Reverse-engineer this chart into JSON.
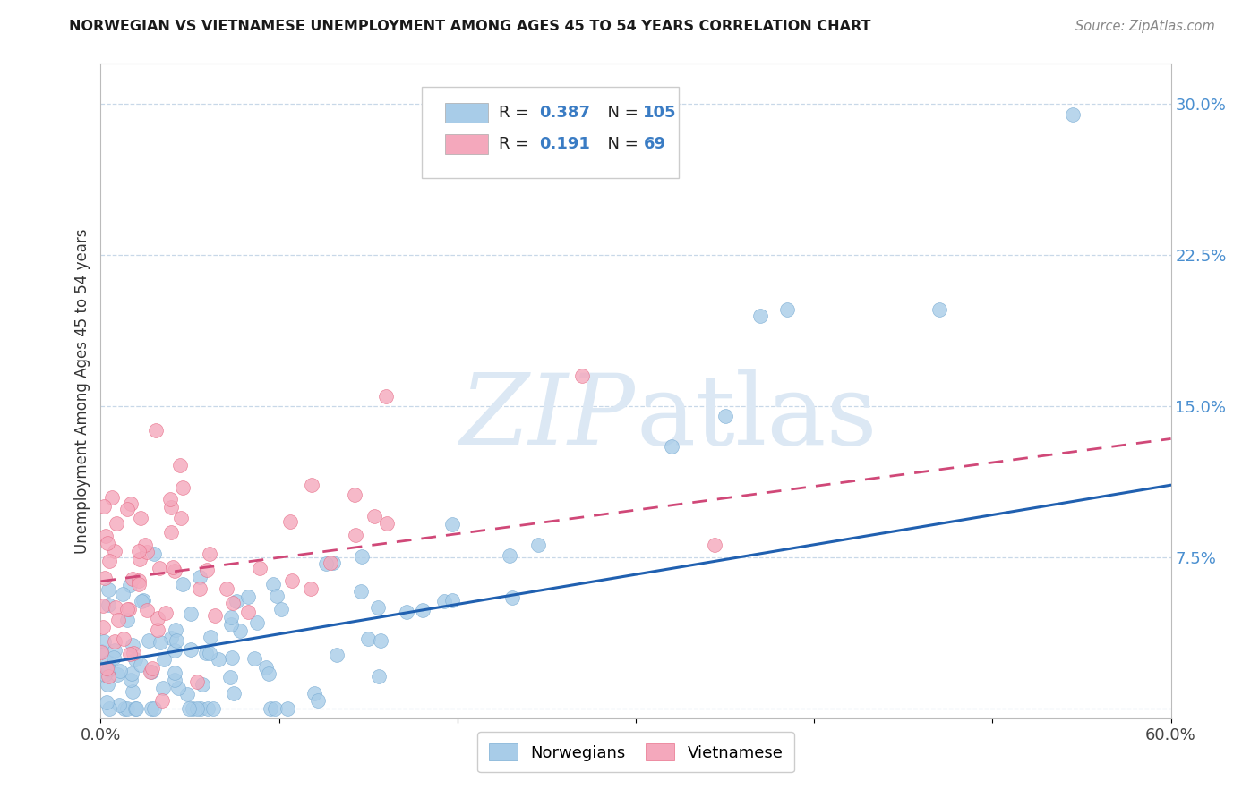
{
  "title": "NORWEGIAN VS VIETNAMESE UNEMPLOYMENT AMONG AGES 45 TO 54 YEARS CORRELATION CHART",
  "source": "Source: ZipAtlas.com",
  "ylabel": "Unemployment Among Ages 45 to 54 years",
  "xlim": [
    0.0,
    0.6
  ],
  "ylim": [
    -0.005,
    0.32
  ],
  "ytick_right_labels": [
    "30.0%",
    "22.5%",
    "15.0%",
    "7.5%",
    ""
  ],
  "ytick_right_values": [
    0.3,
    0.225,
    0.15,
    0.075,
    0.0
  ],
  "norwegian_R": 0.387,
  "norwegian_N": 105,
  "vietnamese_R": 0.191,
  "vietnamese_N": 69,
  "norwegian_color": "#a8cce8",
  "norwegian_edge_color": "#7badd4",
  "vietnamese_color": "#f4a8bc",
  "vietnamese_edge_color": "#e8708a",
  "norwegian_line_color": "#2060b0",
  "vietnamese_line_color": "#d04878",
  "watermark_color": "#dce8f4",
  "background_color": "#ffffff",
  "grid_color": "#c8d8e8",
  "nor_line_intercept": 0.022,
  "nor_line_slope": 0.148,
  "vie_line_intercept": 0.063,
  "vie_line_slope": 0.118
}
